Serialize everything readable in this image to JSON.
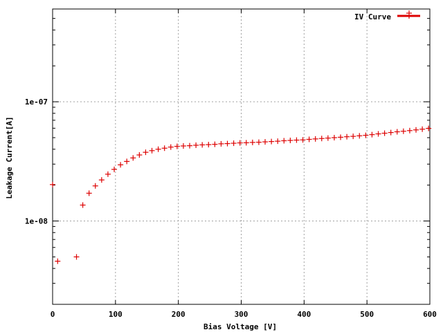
{
  "chart_data": {
    "type": "scatter",
    "title": "",
    "xlabel": "Bias Voltage [V]",
    "ylabel": "Leakage Current[A]",
    "xlim": [
      0,
      600
    ],
    "ylim": [
      2e-09,
      6e-07
    ],
    "yscale": "log",
    "grid": true,
    "legend_position": "top-right",
    "x_ticks": [
      {
        "value": 0,
        "label": "0"
      },
      {
        "value": 100,
        "label": "100"
      },
      {
        "value": 200,
        "label": "200"
      },
      {
        "value": 300,
        "label": "300"
      },
      {
        "value": 400,
        "label": "400"
      },
      {
        "value": 500,
        "label": "500"
      },
      {
        "value": 600,
        "label": "600"
      }
    ],
    "y_ticks": [
      {
        "value": 1e-08,
        "label": "1e-08"
      },
      {
        "value": 1e-07,
        "label": "1e-07"
      }
    ],
    "series": [
      {
        "name": "IV Curve",
        "color": "#dd0000",
        "marker": "plus",
        "x": [
          0,
          8,
          38,
          48,
          58,
          68,
          78,
          88,
          98,
          108,
          118,
          128,
          138,
          148,
          158,
          168,
          178,
          188,
          198,
          208,
          218,
          228,
          238,
          248,
          258,
          268,
          278,
          288,
          298,
          308,
          318,
          328,
          338,
          348,
          358,
          368,
          378,
          388,
          398,
          408,
          418,
          428,
          438,
          448,
          458,
          468,
          478,
          488,
          498,
          508,
          518,
          528,
          538,
          548,
          558,
          568,
          578,
          588,
          598
        ],
        "y": [
          2.02e-08,
          4.6e-09,
          5e-09,
          1.36e-08,
          1.71e-08,
          1.97e-08,
          2.21e-08,
          2.47e-08,
          2.71e-08,
          2.96e-08,
          3.16e-08,
          3.38e-08,
          3.58e-08,
          3.77e-08,
          3.89e-08,
          4e-08,
          4.08e-08,
          4.17e-08,
          4.23e-08,
          4.26e-08,
          4.28e-08,
          4.32e-08,
          4.35e-08,
          4.37e-08,
          4.4e-08,
          4.44e-08,
          4.46e-08,
          4.49e-08,
          4.52e-08,
          4.53e-08,
          4.56e-08,
          4.58e-08,
          4.61e-08,
          4.64e-08,
          4.67e-08,
          4.71e-08,
          4.74e-08,
          4.77e-08,
          4.79e-08,
          4.84e-08,
          4.88e-08,
          4.92e-08,
          4.96e-08,
          5e-08,
          5.04e-08,
          5.09e-08,
          5.13e-08,
          5.18e-08,
          5.23e-08,
          5.3e-08,
          5.38e-08,
          5.45e-08,
          5.52e-08,
          5.6e-08,
          5.66e-08,
          5.73e-08,
          5.81e-08,
          5.89e-08,
          5.98e-08
        ]
      }
    ]
  }
}
